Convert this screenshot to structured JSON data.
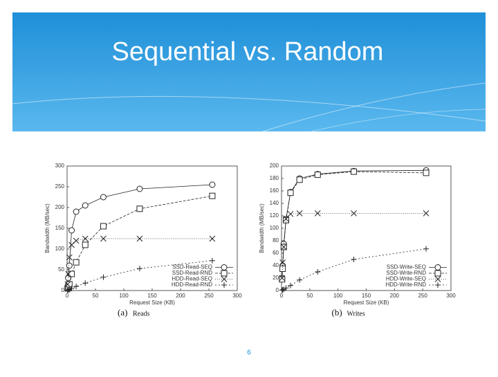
{
  "title": "Sequential vs. Random",
  "page_number": "6",
  "chart_data": [
    {
      "type": "line",
      "caption": "(a)",
      "caption_text": "Reads",
      "x_label": "Request Size (KB)",
      "y_label": "Bandwidth (MB/sec)",
      "x": [
        1,
        2,
        4,
        8,
        16,
        32,
        64,
        128,
        256
      ],
      "xlim": [
        0,
        300
      ],
      "xticks": [
        0,
        50,
        100,
        150,
        200,
        250,
        300
      ],
      "ylim": [
        0,
        300
      ],
      "yticks": [
        0,
        50,
        100,
        150,
        200,
        250,
        300
      ],
      "legend": "lower-right",
      "series": [
        {
          "name": "SSD-Read-SEQ",
          "color": "#222222",
          "marker": "circle",
          "dash": "none",
          "values": [
            10,
            30,
            60,
            145,
            190,
            205,
            225,
            245,
            255
          ]
        },
        {
          "name": "SSD-Read-RND",
          "color": "#222222",
          "marker": "square",
          "dash": "4 2",
          "values": [
            5,
            10,
            15,
            40,
            68,
            110,
            155,
            197,
            228
          ]
        },
        {
          "name": "HDD-Read-SEQ",
          "color": "#222222",
          "marker": "x",
          "dash": "1 2",
          "values": [
            15,
            40,
            80,
            110,
            120,
            125,
            125,
            125,
            125
          ]
        },
        {
          "name": "HDD-Read-RND",
          "color": "#222222",
          "marker": "plus",
          "dash": "2 3",
          "values": [
            0.5,
            1,
            2,
            5,
            10,
            18,
            32,
            53,
            72
          ]
        }
      ]
    },
    {
      "type": "line",
      "caption": "(b)",
      "caption_text": "Writes",
      "x_label": "Request Size (KB)",
      "y_label": "Bandwidth (MB/sec)",
      "x": [
        1,
        2,
        4,
        8,
        16,
        32,
        64,
        128,
        256
      ],
      "xlim": [
        0,
        300
      ],
      "xticks": [
        0,
        50,
        100,
        150,
        200,
        250,
        300
      ],
      "ylim": [
        0,
        200
      ],
      "yticks": [
        0,
        20,
        40,
        60,
        80,
        100,
        120,
        140,
        160,
        180,
        200
      ],
      "legend": "lower-right",
      "series": [
        {
          "name": "SSD-Write-SEQ",
          "color": "#222222",
          "marker": "circle",
          "dash": "none",
          "values": [
            20,
            40,
            75,
            115,
            158,
            180,
            187,
            192,
            193
          ]
        },
        {
          "name": "SSD-Write-RND",
          "color": "#222222",
          "marker": "square",
          "dash": "4 2",
          "values": [
            18,
            35,
            70,
            113,
            157,
            178,
            186,
            191,
            189
          ]
        },
        {
          "name": "HDD-Write-SEQ",
          "color": "#222222",
          "marker": "x",
          "dash": "1 2",
          "values": [
            20,
            45,
            70,
            115,
            123,
            124,
            124,
            124,
            124
          ]
        },
        {
          "name": "HDD-Write-RND",
          "color": "#222222",
          "marker": "plus",
          "dash": "2 3",
          "values": [
            0.5,
            1,
            2,
            4,
            8,
            17,
            30,
            50,
            67
          ]
        }
      ]
    }
  ]
}
